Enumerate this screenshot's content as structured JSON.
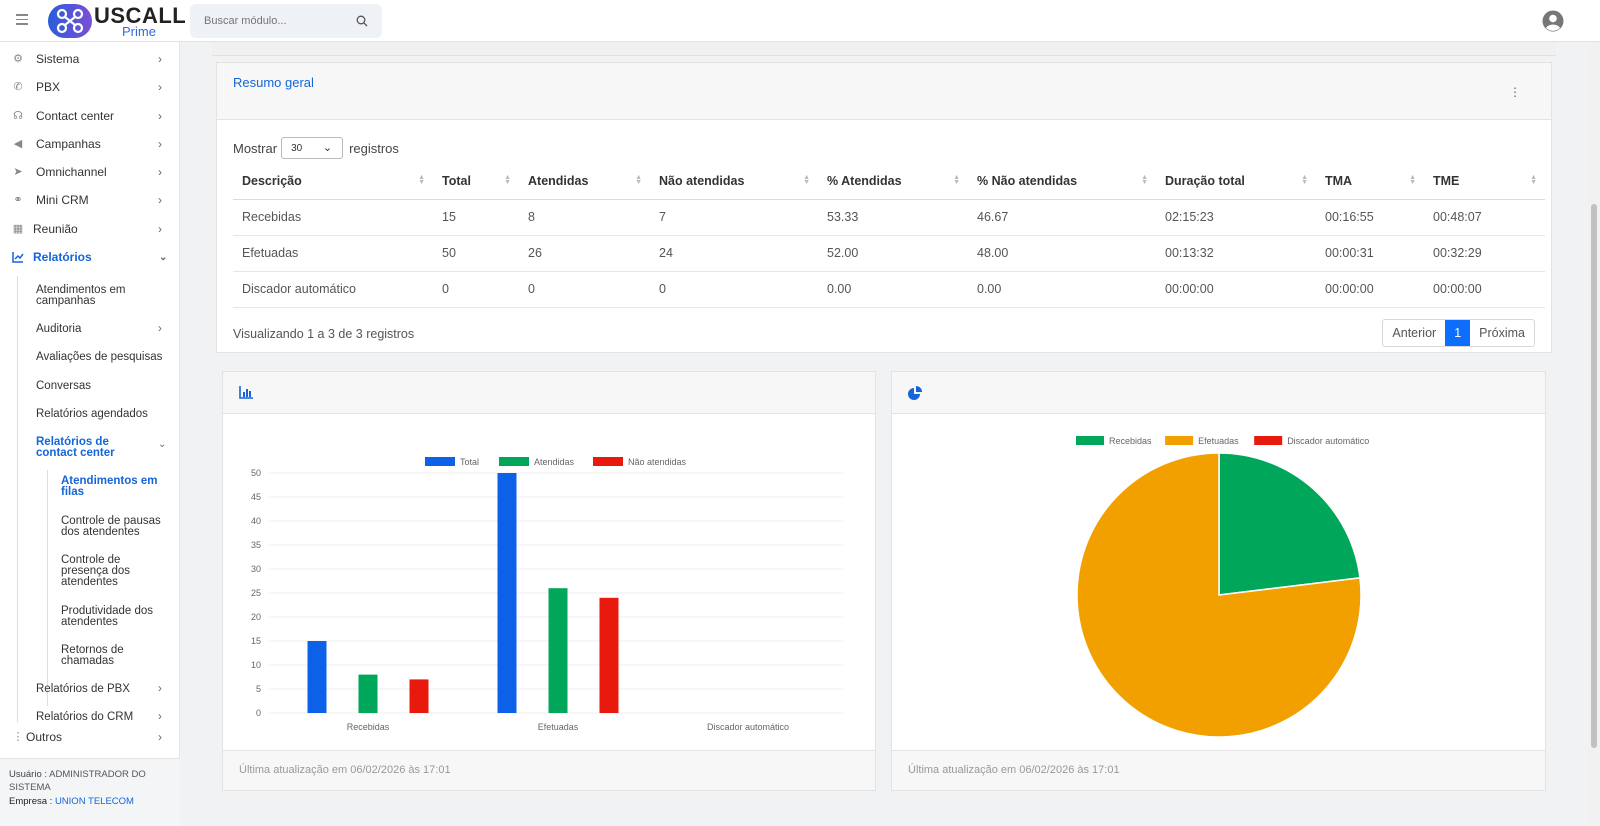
{
  "header": {
    "logo_main": "USCALL",
    "logo_sub": "Prime",
    "search_placeholder": "Buscar módulo..."
  },
  "sidebar": {
    "items": [
      {
        "label": "Sistema",
        "icon": "gears-icon"
      },
      {
        "label": "PBX",
        "icon": "phone-icon"
      },
      {
        "label": "Contact center",
        "icon": "headset-icon"
      },
      {
        "label": "Campanhas",
        "icon": "megaphone-icon"
      },
      {
        "label": "Omnichannel",
        "icon": "paper-plane-icon"
      },
      {
        "label": "Mini CRM",
        "icon": "handshake-icon"
      },
      {
        "label": "Reunião",
        "icon": "calendar-icon"
      },
      {
        "label": "Relatórios",
        "icon": "chart-line-icon"
      }
    ],
    "relatorios_sub": [
      "Atendimentos em campanhas",
      "Auditoria",
      "Avaliações de pesquisas",
      "Conversas",
      "Relatórios agendados",
      "Relatórios de contact center",
      "Relatórios de PBX",
      "Relatórios do CRM"
    ],
    "contact_center_sub": [
      "Atendimentos em filas",
      "Controle de pausas dos atendentes",
      "Controle de presença dos atendentes",
      "Produtividade dos atendentes",
      "Retornos de chamadas"
    ],
    "outros": "Outros",
    "user_label": "Usuário :",
    "user_name": "ADMINISTRADOR DO SISTEMA",
    "company_label": "Empresa :",
    "company_name": "UNION TELECOM"
  },
  "summary": {
    "title": "Resumo geral",
    "show_label": "Mostrar",
    "show_value": "30",
    "records_label": "registros",
    "columns": [
      "Descrição",
      "Total",
      "Atendidas",
      "Não atendidas",
      "% Atendidas",
      "% Não atendidas",
      "Duração total",
      "TMA",
      "TME"
    ],
    "rows": [
      [
        "Recebidas",
        "15",
        "8",
        "7",
        "53.33",
        "46.67",
        "02:15:23",
        "00:16:55",
        "00:48:07"
      ],
      [
        "Efetuadas",
        "50",
        "26",
        "24",
        "52.00",
        "48.00",
        "00:13:32",
        "00:00:31",
        "00:32:29"
      ],
      [
        "Discador automático",
        "0",
        "0",
        "0",
        "0.00",
        "0.00",
        "00:00:00",
        "00:00:00",
        "00:00:00"
      ]
    ],
    "info": "Visualizando 1 a 3 de 3 registros",
    "pager_prev": "Anterior",
    "pager_current": "1",
    "pager_next": "Próxima"
  },
  "colors": {
    "accent": "#1565d8",
    "total": "#0d60e8",
    "atendidas": "#00a65a",
    "nao_atendidas": "#e8190d",
    "efetuadas": "#f2a000"
  },
  "footer_text": "Última atualização em 06/02/2026 às 17:01",
  "chart_data": [
    {
      "type": "bar",
      "categories": [
        "Recebidas",
        "Efetuadas",
        "Discador automático"
      ],
      "series": [
        {
          "name": "Total",
          "values": [
            15,
            50,
            0
          ]
        },
        {
          "name": "Atendidas",
          "values": [
            8,
            26,
            0
          ]
        },
        {
          "name": "Não atendidas",
          "values": [
            7,
            24,
            0
          ]
        }
      ],
      "ylim": [
        0,
        50
      ],
      "yticks": [
        0,
        5,
        10,
        15,
        20,
        25,
        30,
        35,
        40,
        45,
        50
      ],
      "legend": "top",
      "grid": true
    },
    {
      "type": "pie",
      "labels": [
        "Recebidas",
        "Efetuadas",
        "Discador automático"
      ],
      "values": [
        15,
        50,
        0
      ],
      "legend": "top"
    }
  ]
}
